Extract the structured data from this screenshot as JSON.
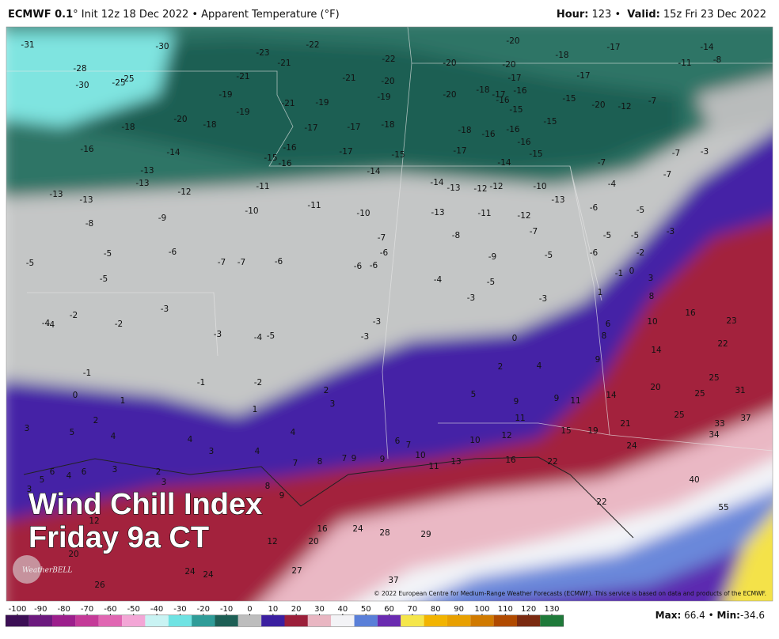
{
  "header": {
    "model": "ECMWF 0.1",
    "init": "° Init 12z 18 Dec 2022 • Apparent Temperature (°F)",
    "hour_label": "Hour:",
    "hour": "123 •",
    "valid_label": "Valid:",
    "valid": "15z Fri 23 Dec 2022"
  },
  "overlay": {
    "line1": "Wind Chill Index",
    "line2": "Friday 9a CT"
  },
  "logo": "WeatherBELL",
  "credit": "© 2022 European Centre for Medium-Range Weather Forecasts (ECMWF). This service is based on data and products of the ECMWF.",
  "colorbar": {
    "ticks": [
      -100,
      -90,
      -80,
      -70,
      -60,
      -50,
      -40,
      -30,
      -20,
      -10,
      0,
      10,
      20,
      30,
      40,
      50,
      60,
      70,
      80,
      90,
      100,
      110,
      120,
      130
    ],
    "colors": [
      "#3c0f55",
      "#6c1a7e",
      "#9c1f8c",
      "#c43a98",
      "#e066b2",
      "#f3a6d6",
      "#c9f3f3",
      "#6fe3e3",
      "#2f9c98",
      "#1d5f55",
      "#bdbdbd",
      "#3b1fa0",
      "#9b1f3a",
      "#e9b6c2",
      "#f3f3f6",
      "#5a7fd8",
      "#6a2bb0",
      "#f5e64a",
      "#f2b400",
      "#e8a000",
      "#d07a00",
      "#b04a00",
      "#7a2a10",
      "#1f7a3a"
    ]
  },
  "stats": {
    "max_label": "Max:",
    "max": 66.4,
    "sep": "•",
    "min_label": "Min:",
    "min": -34.6
  },
  "map_labels": [
    -31,
    -30,
    -22,
    -23,
    -20,
    -14,
    -17,
    -18,
    -28,
    -21,
    -22,
    -20,
    -20,
    -11,
    -8,
    -30,
    -25,
    -25,
    -21,
    -21,
    -20,
    -17,
    -17,
    -19,
    -21,
    -19,
    -19,
    -20,
    -18,
    -17,
    -16,
    -15,
    -20,
    -12,
    -7,
    -16,
    -20,
    -18,
    -19,
    -17,
    -17,
    -18,
    -15,
    -15,
    -16,
    -18,
    -16,
    -18,
    -16,
    -14,
    -16,
    -15,
    -16,
    -17,
    -15,
    -17,
    -14,
    -16,
    -15,
    -7,
    -3,
    -7,
    -13,
    -13,
    -12,
    -13,
    -13,
    -11,
    -14,
    -14,
    -13,
    -12,
    -12,
    -10,
    -13,
    -4,
    -7,
    -10,
    -11,
    -10,
    -13,
    -11,
    -12,
    -6,
    -5,
    -3,
    -9,
    -8,
    -7,
    -8,
    -7,
    -5,
    -5,
    -5,
    -5,
    -6,
    -7,
    -7,
    -6,
    -6,
    -6,
    -6,
    -9,
    -5,
    -6,
    -2,
    -5,
    -4,
    -5,
    -1,
    0,
    -3,
    -3,
    -3,
    -2,
    -4,
    -4,
    -2,
    -3,
    -3,
    -4,
    -5,
    -3,
    0,
    1,
    3,
    8,
    6,
    8,
    10,
    16,
    23,
    22,
    14,
    9,
    2,
    4,
    -1,
    -1,
    -2,
    0,
    1,
    2,
    3,
    5,
    9,
    9,
    11,
    14,
    20,
    25,
    31,
    25,
    1,
    11,
    25,
    33,
    37,
    2,
    21,
    15,
    19,
    34,
    3,
    5,
    4,
    4,
    4,
    12,
    10,
    6,
    7,
    3,
    4,
    24,
    10,
    7,
    8,
    7,
    9,
    9,
    13,
    11,
    16,
    22,
    6,
    4,
    6,
    3,
    2,
    3,
    8,
    9,
    5,
    3,
    40,
    22,
    55,
    12,
    16,
    24,
    28,
    29,
    20,
    12,
    20,
    27,
    24,
    24,
    37,
    26
  ]
}
